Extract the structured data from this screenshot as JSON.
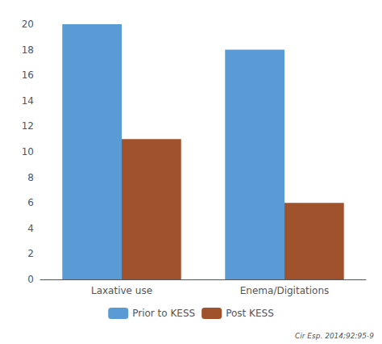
{
  "chart_data": {
    "type": "bar",
    "categories": [
      "Laxative use",
      "Enema/Digitations"
    ],
    "series": [
      {
        "name": "Prior to KESS",
        "color": "#5B9BD5",
        "values": [
          20,
          18
        ]
      },
      {
        "name": "Post KESS",
        "color": "#A0522D",
        "values": [
          11,
          6
        ]
      }
    ],
    "ylim": [
      0,
      20
    ],
    "yticks": [
      0,
      2,
      4,
      6,
      8,
      10,
      12,
      14,
      16,
      18,
      20
    ],
    "grid": false,
    "legend": "bottom",
    "annotations": [
      "Cir Esp. 2014;92:95-9"
    ]
  }
}
